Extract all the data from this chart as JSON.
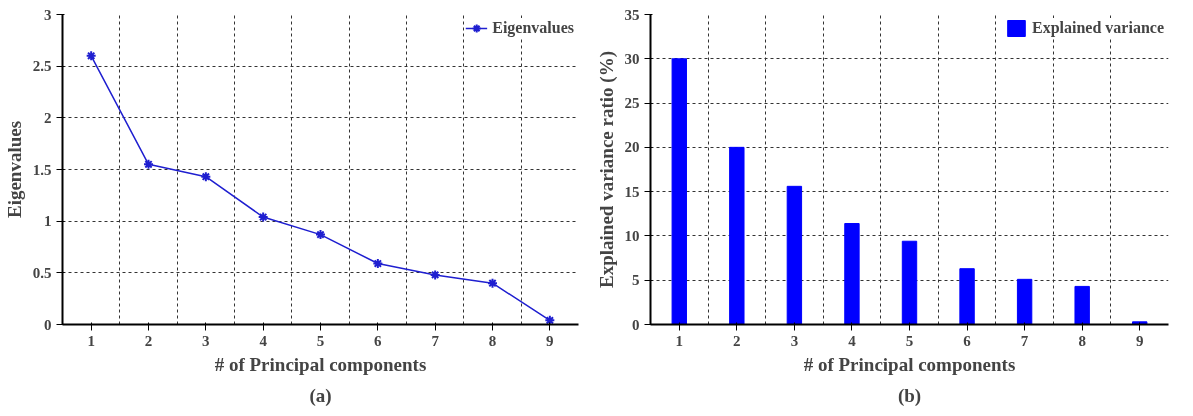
{
  "chart_data": [
    {
      "type": "line",
      "xlabel": "# of Principal components",
      "ylabel": "Eigenvalues",
      "categories": [
        "1",
        "2",
        "3",
        "4",
        "5",
        "6",
        "7",
        "8",
        "9"
      ],
      "series": [
        {
          "name": "Eigenvalues",
          "color": "#1f1fd0",
          "values": [
            2.6,
            1.55,
            1.43,
            1.04,
            0.87,
            0.59,
            0.48,
            0.4,
            0.04
          ]
        }
      ],
      "ylim": [
        0,
        3
      ],
      "yticks": [
        0,
        0.5,
        1,
        1.5,
        2,
        2.5,
        3
      ],
      "grid": true,
      "legend": "top right",
      "marker": "cross",
      "line_style": "solid",
      "annotations": [
        "(a)"
      ]
    },
    {
      "type": "bar",
      "xlabel": "# of Principal components",
      "ylabel": "Explained variance ratio (%)",
      "categories": [
        "1",
        "2",
        "3",
        "4",
        "5",
        "6",
        "7",
        "8",
        "9"
      ],
      "series": [
        {
          "name": "Explained variance",
          "color": "#0000ff",
          "values": [
            30,
            20,
            15.6,
            11.4,
            9.4,
            6.3,
            5.1,
            4.3,
            0.3
          ]
        }
      ],
      "ylim": [
        0,
        35
      ],
      "yticks": [
        0,
        5,
        10,
        15,
        20,
        25,
        30,
        35
      ],
      "grid": true,
      "legend": "top right",
      "annotations": [
        "(b)"
      ]
    }
  ]
}
